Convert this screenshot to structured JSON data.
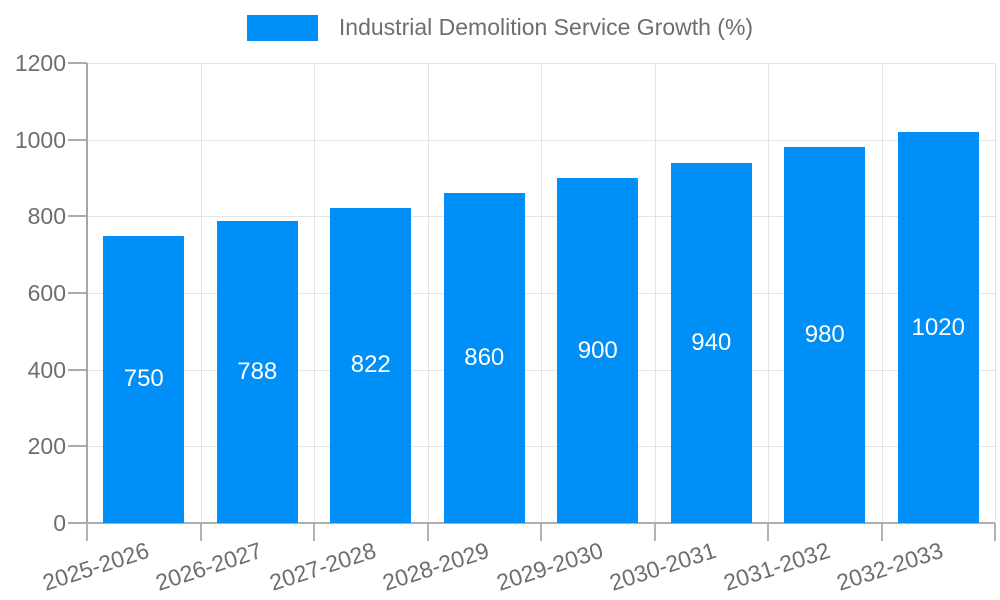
{
  "legend": {
    "label": "Industrial Demolition Service Growth (%)"
  },
  "colors": {
    "bar": "#008ff7",
    "grid": "#e4e4e4",
    "axis": "#a6a6a6",
    "tick": "#b0b0b0",
    "axis_text": "#6e6e6e",
    "value_text": "#ffffff",
    "background": "#ffffff"
  },
  "chart_data": {
    "type": "bar",
    "title": "Industrial Demolition Service Growth (%)",
    "categories": [
      "2025-2026",
      "2026-2027",
      "2027-2028",
      "2028-2029",
      "2029-2030",
      "2030-2031",
      "2031-2032",
      "2032-2033"
    ],
    "values": [
      750,
      788,
      822,
      860,
      900,
      940,
      980,
      1020
    ],
    "xlabel": "",
    "ylabel": "",
    "ylim": [
      0,
      1200
    ],
    "y_ticks": [
      0,
      200,
      400,
      600,
      800,
      1000,
      1200
    ],
    "grid": "horizontal and vertical",
    "legend_position": "top-center",
    "value_labels": "inside-center-white",
    "x_label_rotation_deg": -18
  }
}
